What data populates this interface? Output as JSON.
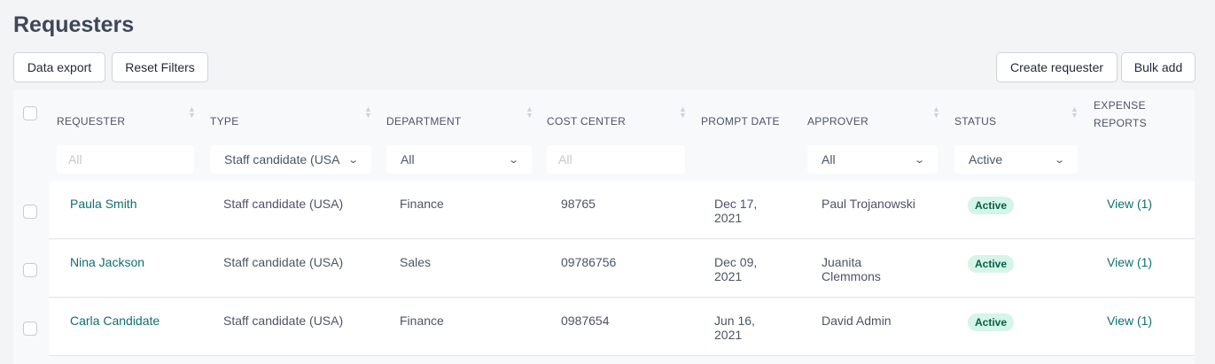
{
  "page": {
    "title": "Requesters"
  },
  "toolbar": {
    "data_export": "Data export",
    "reset_filters": "Reset Filters",
    "create_requester": "Create requester",
    "bulk_add": "Bulk add"
  },
  "columns": [
    "REQUESTER",
    "TYPE",
    "DEPARTMENT",
    "COST CENTER",
    "PROMPT DATE",
    "APPROVER",
    "STATUS",
    "EXPENSE",
    "REPORTS"
  ],
  "filters": {
    "requester_placeholder": "All",
    "type": "Staff candidate (USA",
    "department": "All",
    "cost_center_placeholder": "All",
    "approver": "All",
    "status": "Active"
  },
  "rows": [
    {
      "name": "Paula Smith",
      "type": "Staff candidate (USA)",
      "department": "Finance",
      "cost_center": "98765",
      "date1": "Dec 17,",
      "date2": "2021",
      "approver1": "Paul Trojanowski",
      "approver2": "",
      "status": "Active",
      "reports": "View (1)"
    },
    {
      "name": "Nina Jackson",
      "type": "Staff candidate (USA)",
      "department": "Sales",
      "cost_center": "09786756",
      "date1": "Dec 09,",
      "date2": "2021",
      "approver1": "Juanita",
      "approver2": "Clemmons",
      "status": "Active",
      "reports": "View (1)"
    },
    {
      "name": "Carla Candidate",
      "type": "Staff candidate (USA)",
      "department": "Finance",
      "cost_center": "0987654",
      "date1": "Jun 16,",
      "date2": "2021",
      "approver1": "David Admin",
      "approver2": "",
      "status": "Active",
      "reports": "View (1)"
    }
  ],
  "colors": {
    "link": "#0f6f6f",
    "badge_bg": "#d5f5e8",
    "badge_text": "#065f46"
  }
}
